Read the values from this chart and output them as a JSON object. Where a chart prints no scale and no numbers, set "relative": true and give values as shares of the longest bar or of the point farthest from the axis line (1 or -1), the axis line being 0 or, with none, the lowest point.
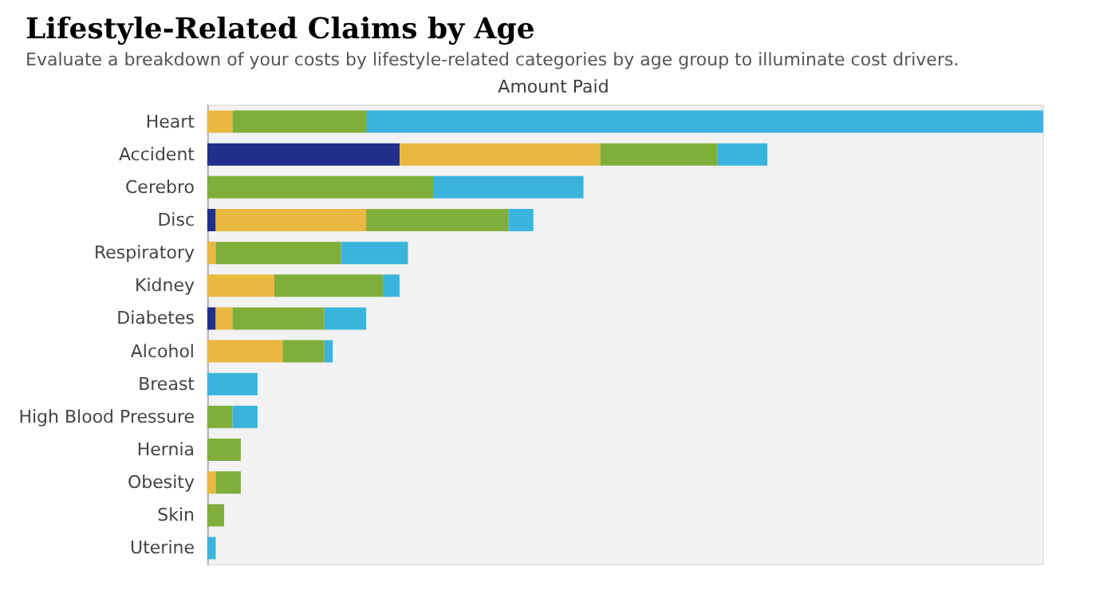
{
  "chart_data": {
    "type": "bar",
    "orientation": "horizontal",
    "stacked": true,
    "relative": true,
    "title": "Lifestyle-Related Claims by Age",
    "subtitle": "Evaluate a breakdown of your costs by lifestyle-related categories by age group to illuminate cost drivers.",
    "xlabel": "Amount Paid",
    "categories": [
      "Heart",
      "Accident",
      "Cerebro",
      "Disc",
      "Respiratory",
      "Kidney",
      "Diabetes",
      "Alcohol",
      "Breast",
      "High Blood Pressure",
      "Hernia",
      "Obesity",
      "Skin",
      "Uterine"
    ],
    "series": [
      {
        "color": "#1f2f8a",
        "values": [
          0,
          0.23,
          0,
          0.01,
          0,
          0,
          0.01,
          0,
          0,
          0,
          0,
          0,
          0,
          0
        ]
      },
      {
        "color": "#e8b840",
        "values": [
          0.03,
          0.24,
          0,
          0.18,
          0.01,
          0.08,
          0.02,
          0.09,
          0,
          0,
          0,
          0.01,
          0,
          0
        ]
      },
      {
        "color": "#7fae3a",
        "values": [
          0.16,
          0.14,
          0.27,
          0.17,
          0.15,
          0.13,
          0.11,
          0.05,
          0,
          0.03,
          0.04,
          0.03,
          0.02,
          0
        ]
      },
      {
        "color": "#3ab4dc",
        "values": [
          0.81,
          0.06,
          0.18,
          0.03,
          0.08,
          0.02,
          0.05,
          0.01,
          0.06,
          0.03,
          0,
          0,
          0,
          0.01
        ]
      }
    ]
  }
}
